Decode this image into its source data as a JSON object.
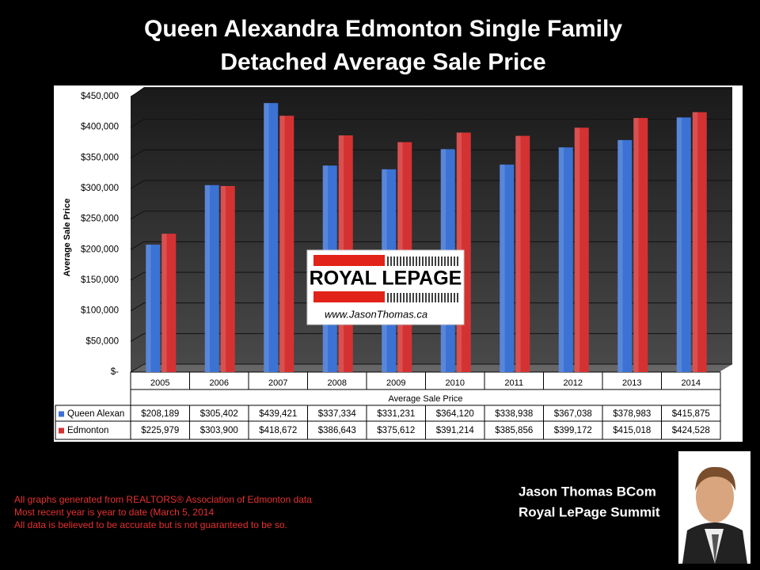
{
  "chart_data": {
    "type": "bar",
    "title": [
      "Queen Alexandra  Edmonton Single Family",
      "Detached Average Sale Price"
    ],
    "y_label": "Average Sale Price",
    "x_label": "Average Sale Price",
    "categories": [
      "2005",
      "2006",
      "2007",
      "2008",
      "2009",
      "2010",
      "2011",
      "2012",
      "2013",
      "2014"
    ],
    "series": [
      {
        "name": "Queen Alexan",
        "color": "#3b72d4",
        "values": [
          208189,
          305402,
          439421,
          337334,
          331231,
          364120,
          338938,
          367038,
          378983,
          415875
        ],
        "value_labels": [
          "$208,189",
          "$305,402",
          "$439,421",
          "$337,334",
          "$331,231",
          "$364,120",
          "$338,938",
          "$367,038",
          "$378,983",
          "$415,875"
        ]
      },
      {
        "name": "Edmonton",
        "color": "#d43232",
        "values": [
          225979,
          303900,
          418672,
          386643,
          375612,
          391214,
          385856,
          399172,
          415018,
          424528
        ],
        "value_labels": [
          "$225,979",
          "$303,900",
          "$418,672",
          "$386,643",
          "$375,612",
          "$391,214",
          "$385,856",
          "$399,172",
          "$415,018",
          "$424,528"
        ]
      }
    ],
    "ylim": [
      0,
      450000
    ],
    "yticks": [
      {
        "value": 0,
        "label": "$-"
      },
      {
        "value": 50000,
        "label": "$50,000"
      },
      {
        "value": 100000,
        "label": "$100,000"
      },
      {
        "value": 150000,
        "label": "$150,000"
      },
      {
        "value": 200000,
        "label": "$200,000"
      },
      {
        "value": 250000,
        "label": "$250,000"
      },
      {
        "value": 300000,
        "label": "$300,000"
      },
      {
        "value": 350000,
        "label": "$350,000"
      },
      {
        "value": 400000,
        "label": "$400,000"
      },
      {
        "value": 450000,
        "label": "$450,000"
      }
    ],
    "grid": true
  },
  "logo": {
    "brand": "ROYAL LEPAGE",
    "url": "www.JasonThomas.ca"
  },
  "footnotes": [
    "All graphs generated from REALTORS® Association of Edmonton data",
    "Most recent year is year to date (March 5, 2014",
    "All data is believed to be accurate but is not guaranteed to be so."
  ],
  "signature": [
    "Jason Thomas BCom",
    "Royal LePage Summit"
  ]
}
